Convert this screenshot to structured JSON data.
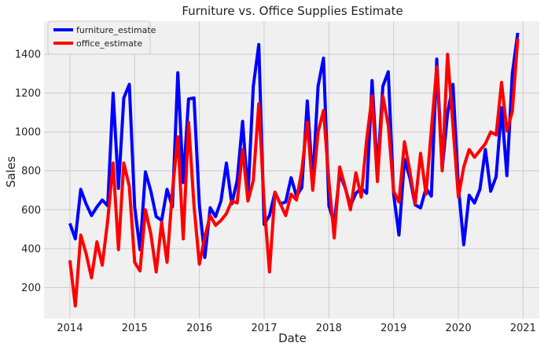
{
  "chart_data": {
    "type": "line",
    "title": "Furniture vs. Office Supplies Estimate",
    "xlabel": "Date",
    "ylabel": "Sales",
    "xlim": [
      2013.6,
      2021.25
    ],
    "ylim": [
      40,
      1570
    ],
    "x_ticks": [
      2014,
      2015,
      2016,
      2017,
      2018,
      2019,
      2020,
      2021
    ],
    "x_tick_labels": [
      "2014",
      "2015",
      "2016",
      "2017",
      "2018",
      "2019",
      "2020",
      "2021"
    ],
    "y_ticks": [
      200,
      400,
      600,
      800,
      1000,
      1200,
      1400
    ],
    "y_tick_labels": [
      "200",
      "400",
      "600",
      "800",
      "1000",
      "1200",
      "1400"
    ],
    "grid": true,
    "legend_position": "top-left",
    "series": [
      {
        "name": "furniture_estimate",
        "color": "#0000ff",
        "x": [
          2014.0,
          2014.083,
          2014.167,
          2014.25,
          2014.333,
          2014.417,
          2014.5,
          2014.583,
          2014.667,
          2014.75,
          2014.833,
          2014.917,
          2015.0,
          2015.083,
          2015.167,
          2015.25,
          2015.333,
          2015.417,
          2015.5,
          2015.583,
          2015.667,
          2015.75,
          2015.833,
          2015.917,
          2016.0,
          2016.083,
          2016.167,
          2016.25,
          2016.333,
          2016.417,
          2016.5,
          2016.583,
          2016.667,
          2016.75,
          2016.833,
          2016.917,
          2017.0,
          2017.083,
          2017.167,
          2017.25,
          2017.333,
          2017.417,
          2017.5,
          2017.583,
          2017.667,
          2017.75,
          2017.833,
          2017.917,
          2018.0,
          2018.083,
          2018.167,
          2018.25,
          2018.333,
          2018.417,
          2018.5,
          2018.583,
          2018.667,
          2018.75,
          2018.833,
          2018.917,
          2019.0,
          2019.083,
          2019.167,
          2019.25,
          2019.333,
          2019.417,
          2019.5,
          2019.583,
          2019.667,
          2019.75,
          2019.833,
          2019.917,
          2020.0,
          2020.083,
          2020.167,
          2020.25,
          2020.333,
          2020.417,
          2020.5,
          2020.583,
          2020.667,
          2020.75,
          2020.833,
          2020.917
        ],
        "values": [
          530,
          450,
          705,
          630,
          570,
          615,
          650,
          620,
          1200,
          710,
          1175,
          1245,
          615,
          395,
          795,
          695,
          565,
          545,
          705,
          615,
          1305,
          740,
          1170,
          1175,
          625,
          355,
          610,
          565,
          645,
          840,
          630,
          750,
          1055,
          670,
          1235,
          1450,
          525,
          570,
          690,
          630,
          640,
          765,
          670,
          715,
          1160,
          740,
          1235,
          1380,
          620,
          530,
          785,
          715,
          620,
          685,
          710,
          685,
          1265,
          790,
          1235,
          1310,
          680,
          470,
          860,
          765,
          625,
          610,
          710,
          670,
          1375,
          810,
          1095,
          1245,
          720,
          420,
          675,
          635,
          705,
          910,
          695,
          770,
          1125,
          775,
          1300,
          1510
        ]
      },
      {
        "name": "office_estimate",
        "color": "#ff0000",
        "x": [
          2014.0,
          2014.083,
          2014.167,
          2014.25,
          2014.333,
          2014.417,
          2014.5,
          2014.583,
          2014.667,
          2014.75,
          2014.833,
          2014.917,
          2015.0,
          2015.083,
          2015.167,
          2015.25,
          2015.333,
          2015.417,
          2015.5,
          2015.583,
          2015.667,
          2015.75,
          2015.833,
          2015.917,
          2016.0,
          2016.083,
          2016.167,
          2016.25,
          2016.333,
          2016.417,
          2016.5,
          2016.583,
          2016.667,
          2016.75,
          2016.833,
          2016.917,
          2017.0,
          2017.083,
          2017.167,
          2017.25,
          2017.333,
          2017.417,
          2017.5,
          2017.583,
          2017.667,
          2017.75,
          2017.833,
          2017.917,
          2018.0,
          2018.083,
          2018.167,
          2018.25,
          2018.333,
          2018.417,
          2018.5,
          2018.583,
          2018.667,
          2018.75,
          2018.833,
          2018.917,
          2019.0,
          2019.083,
          2019.167,
          2019.25,
          2019.333,
          2019.417,
          2019.5,
          2019.583,
          2019.667,
          2019.75,
          2019.833,
          2019.917,
          2020.0,
          2020.083,
          2020.167,
          2020.25,
          2020.333,
          2020.417,
          2020.5,
          2020.583,
          2020.667,
          2020.75,
          2020.833,
          2020.917
        ],
        "values": [
          340,
          105,
          470,
          375,
          250,
          435,
          315,
          545,
          840,
          395,
          840,
          720,
          330,
          285,
          600,
          475,
          280,
          535,
          330,
          695,
          975,
          450,
          1050,
          620,
          320,
          460,
          570,
          520,
          545,
          580,
          645,
          635,
          910,
          645,
          750,
          1145,
          630,
          280,
          690,
          630,
          570,
          680,
          650,
          805,
          1050,
          700,
          1000,
          1110,
          745,
          455,
          820,
          720,
          600,
          790,
          665,
          960,
          1185,
          745,
          1185,
          1035,
          695,
          640,
          950,
          800,
          630,
          890,
          680,
          1010,
          1335,
          800,
          1400,
          1030,
          665,
          820,
          910,
          870,
          905,
          940,
          1000,
          985,
          1255,
          1005,
          1105,
          1480
        ]
      }
    ]
  }
}
